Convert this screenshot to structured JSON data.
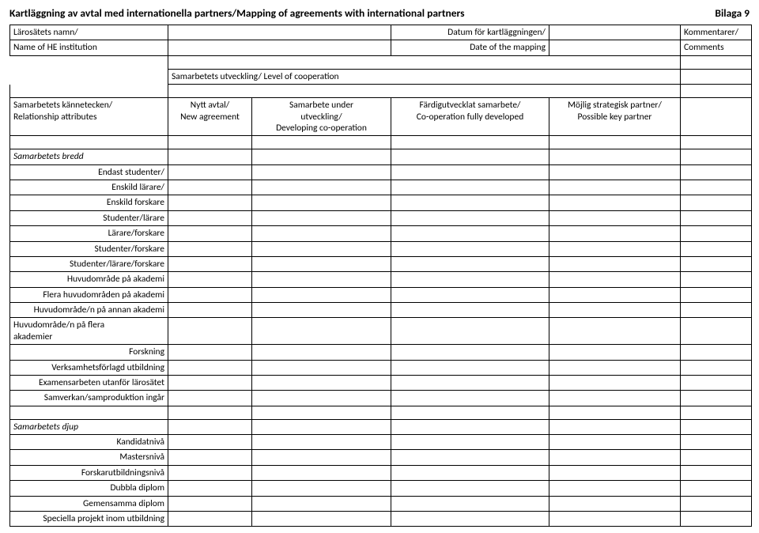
{
  "title": "Kartläggning av avtal med internationella partners/Mapping of agreements with international partners",
  "bilaga": "Bilaga 9",
  "header": {
    "left1": "Lärosätets namn/",
    "left2": "Name of HE institution",
    "mid1": "Datum för kartläggningen/",
    "mid2": "Date of the mapping",
    "right1": "Kommentarer/",
    "right2": "Comments"
  },
  "level_row": "Samarbetets utveckling/ Level of cooperation",
  "attrs": {
    "left1": "Samarbetets kännetecken/",
    "left2": "Relationship attributes",
    "col2a": "Nytt avtal/",
    "col2b": "New agreement",
    "col3a": "Samarbete under",
    "col3b": "utveckling/",
    "col3c": "Developing co-operation",
    "col4a": "Färdigutvecklat samarbete/",
    "col4b": "Co-operation fully developed",
    "col5a": "Möjlig strategisk partner/",
    "col5b": "Possible key partner"
  },
  "bredd": {
    "heading": "Samarbetets bredd",
    "rows": [
      "Endast studenter/",
      "Enskild lärare/",
      "Enskild forskare",
      "Studenter/lärare",
      "Lärare/forskare",
      "Studenter/forskare",
      "Studenter/lärare/forskare",
      "Huvudområde på akademi",
      "Flera huvudområden på akademi",
      "Huvudområde/n på annan akademi"
    ],
    "multiline1": "Huvudområde/n på flera",
    "multiline2": "akademier",
    "rows2": [
      "Forskning",
      "Verksamhetsförlagd utbildning",
      "Examensarbeten utanför lärosätet",
      "Samverkan/samproduktion ingår"
    ]
  },
  "djup": {
    "heading": "Samarbetets djup",
    "rows": [
      "Kandidatnivå",
      "Mastersnivå",
      "Forskarutbildningsnivå",
      "Dubbla diplom",
      "Gemensamma diplom",
      "Speciella projekt inom utbildning"
    ]
  }
}
